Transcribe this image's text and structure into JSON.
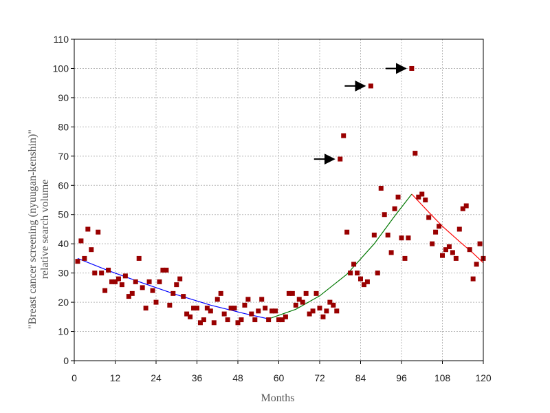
{
  "chart_data": {
    "type": "scatter",
    "title": "",
    "xlabel": "Months",
    "ylabel_lines": [
      "\"Breast cancer screening (nyuugan-kenshin)\"",
      "relative search volume"
    ],
    "xlim": [
      0,
      120
    ],
    "ylim": [
      0,
      110
    ],
    "xticks": [
      0,
      12,
      24,
      36,
      48,
      60,
      72,
      84,
      96,
      108,
      120
    ],
    "yticks": [
      0,
      10,
      20,
      30,
      40,
      50,
      60,
      70,
      80,
      90,
      100,
      110
    ],
    "grid": true,
    "points": [
      [
        1,
        34
      ],
      [
        2,
        41
      ],
      [
        3,
        35
      ],
      [
        4,
        45
      ],
      [
        5,
        38
      ],
      [
        6,
        30
      ],
      [
        7,
        44
      ],
      [
        8,
        30
      ],
      [
        9,
        24
      ],
      [
        10,
        31
      ],
      [
        11,
        27
      ],
      [
        12,
        27
      ],
      [
        13,
        28
      ],
      [
        14,
        26
      ],
      [
        15,
        29
      ],
      [
        16,
        22
      ],
      [
        17,
        23
      ],
      [
        18,
        27
      ],
      [
        19,
        35
      ],
      [
        20,
        25
      ],
      [
        21,
        18
      ],
      [
        22,
        27
      ],
      [
        23,
        24
      ],
      [
        24,
        20
      ],
      [
        25,
        27
      ],
      [
        26,
        31
      ],
      [
        27,
        31
      ],
      [
        28,
        19
      ],
      [
        29,
        23
      ],
      [
        30,
        26
      ],
      [
        31,
        28
      ],
      [
        32,
        22
      ],
      [
        33,
        16
      ],
      [
        34,
        15
      ],
      [
        35,
        18
      ],
      [
        36,
        18
      ],
      [
        37,
        13
      ],
      [
        38,
        14
      ],
      [
        39,
        18
      ],
      [
        40,
        17
      ],
      [
        41,
        13
      ],
      [
        42,
        21
      ],
      [
        43,
        23
      ],
      [
        44,
        16
      ],
      [
        45,
        14
      ],
      [
        46,
        18
      ],
      [
        47,
        18
      ],
      [
        48,
        13
      ],
      [
        49,
        14
      ],
      [
        50,
        19
      ],
      [
        51,
        21
      ],
      [
        52,
        16
      ],
      [
        53,
        14
      ],
      [
        54,
        17
      ],
      [
        55,
        21
      ],
      [
        56,
        18
      ],
      [
        57,
        14
      ],
      [
        58,
        17
      ],
      [
        59,
        17
      ],
      [
        60,
        14
      ],
      [
        61,
        14
      ],
      [
        62,
        15
      ],
      [
        63,
        23
      ],
      [
        64,
        23
      ],
      [
        65,
        19
      ],
      [
        66,
        21
      ],
      [
        67,
        20
      ],
      [
        68,
        23
      ],
      [
        69,
        16
      ],
      [
        70,
        17
      ],
      [
        71,
        23
      ],
      [
        72,
        18
      ],
      [
        73,
        15
      ],
      [
        74,
        17
      ],
      [
        75,
        20
      ],
      [
        76,
        19
      ],
      [
        77,
        17
      ],
      [
        78,
        69
      ],
      [
        79,
        77
      ],
      [
        80,
        44
      ],
      [
        81,
        30
      ],
      [
        82,
        33
      ],
      [
        83,
        30
      ],
      [
        84,
        28
      ],
      [
        85,
        26
      ],
      [
        86,
        27
      ],
      [
        87,
        94
      ],
      [
        88,
        43
      ],
      [
        89,
        30
      ],
      [
        90,
        59
      ],
      [
        91,
        50
      ],
      [
        92,
        43
      ],
      [
        93,
        37
      ],
      [
        94,
        52
      ],
      [
        95,
        56
      ],
      [
        96,
        42
      ],
      [
        97,
        35
      ],
      [
        98,
        42
      ],
      [
        99,
        100
      ],
      [
        100,
        71
      ],
      [
        101,
        56
      ],
      [
        102,
        57
      ],
      [
        103,
        55
      ],
      [
        104,
        49
      ],
      [
        105,
        40
      ],
      [
        106,
        44
      ],
      [
        107,
        46
      ],
      [
        108,
        36
      ],
      [
        109,
        38
      ],
      [
        110,
        39
      ],
      [
        111,
        37
      ],
      [
        112,
        35
      ],
      [
        113,
        45
      ],
      [
        114,
        52
      ],
      [
        115,
        53
      ],
      [
        116,
        38
      ],
      [
        117,
        28
      ],
      [
        118,
        33
      ],
      [
        119,
        40
      ],
      [
        120,
        35
      ]
    ],
    "point_color": "#990000",
    "trend_lines": [
      {
        "color": "#0000ff",
        "points": [
          [
            1,
            35
          ],
          [
            10,
            30.8
          ],
          [
            20,
            26.6
          ],
          [
            30,
            22.6
          ],
          [
            40,
            19
          ],
          [
            50,
            16.1
          ],
          [
            57,
            14.3
          ]
        ]
      },
      {
        "color": "#007700",
        "points": [
          [
            57,
            14.3
          ],
          [
            65,
            17.6
          ],
          [
            72,
            22.2
          ],
          [
            80,
            29.6
          ],
          [
            88,
            40
          ],
          [
            94,
            49.5
          ],
          [
            99,
            57
          ]
        ]
      },
      {
        "color": "#ff0000",
        "points": [
          [
            99,
            57
          ],
          [
            104,
            50.8
          ],
          [
            108,
            46
          ],
          [
            113,
            40.8
          ],
          [
            117,
            36.8
          ],
          [
            120,
            33.5
          ]
        ]
      }
    ],
    "annotations": [
      {
        "type": "arrow",
        "points_to": [
          78,
          69
        ]
      },
      {
        "type": "arrow",
        "points_to": [
          87,
          94
        ]
      },
      {
        "type": "arrow",
        "points_to": [
          99,
          100
        ]
      }
    ]
  }
}
